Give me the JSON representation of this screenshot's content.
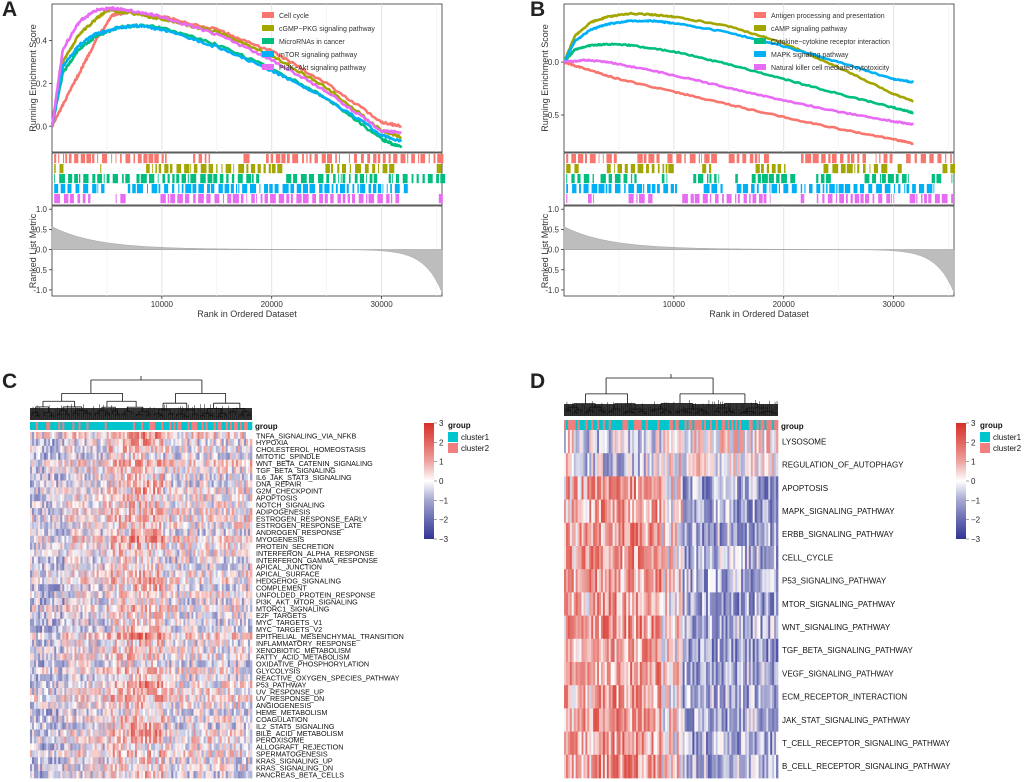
{
  "panel_labels": {
    "a": "A",
    "b": "B",
    "c": "C",
    "d": "D"
  },
  "chart_data": [
    {
      "type": "line",
      "panel": "A",
      "title": "",
      "ylabel_top": "Running Enrichment Score",
      "ylabel_bottom": "Ranked List Metric",
      "xlabel": "Rank in Ordered Dataset",
      "x_ticks": [
        "10000",
        "20000",
        "30000"
      ],
      "x_tick_values": [
        10000,
        20000,
        30000
      ],
      "xlim": [
        0,
        35500
      ],
      "y_ticks_top": [
        "0.0",
        "0.2",
        "0.4"
      ],
      "y_tick_values_top": [
        0.0,
        0.2,
        0.4
      ],
      "ylim_top": [
        -0.12,
        0.57
      ],
      "y_ticks_bottom": [
        "1.0",
        "0.5",
        "0.0",
        "-0.5",
        "-1.0"
      ],
      "y_tick_values_bottom": [
        1.0,
        0.5,
        0.0,
        -0.5,
        -1.0
      ],
      "ylim_bottom": [
        -1.15,
        1.08
      ],
      "series": [
        {
          "name": "Cell cycle",
          "color": "#F8766D",
          "x": [
            0,
            1500,
            3000,
            4200,
            5500,
            7000,
            10000,
            15000,
            20000,
            25000,
            30000,
            31800
          ],
          "y": [
            0.0,
            0.15,
            0.3,
            0.42,
            0.52,
            0.53,
            0.51,
            0.45,
            0.35,
            0.2,
            0.02,
            0.0
          ]
        },
        {
          "name": "cGMP−PKG signaling pathway",
          "color": "#A3A500",
          "x": [
            0,
            1000,
            2500,
            4000,
            5000,
            7000,
            10000,
            15000,
            20000,
            25000,
            30000,
            31800
          ],
          "y": [
            0.0,
            0.3,
            0.43,
            0.5,
            0.54,
            0.53,
            0.5,
            0.44,
            0.33,
            0.18,
            -0.02,
            -0.05
          ]
        },
        {
          "name": "MicroRNAs in cancer",
          "color": "#00BF7D",
          "x": [
            0,
            1000,
            2500,
            4000,
            6000,
            8000,
            10000,
            15000,
            20000,
            25000,
            30000,
            31800
          ],
          "y": [
            0.0,
            0.25,
            0.36,
            0.42,
            0.46,
            0.47,
            0.46,
            0.38,
            0.27,
            0.13,
            -0.06,
            -0.1
          ]
        },
        {
          "name": "mTOR signaling pathway",
          "color": "#00B0F6",
          "x": [
            0,
            1000,
            2500,
            4000,
            6000,
            8000,
            10000,
            15000,
            20000,
            25000,
            30000,
            31800
          ],
          "y": [
            0.0,
            0.28,
            0.38,
            0.43,
            0.46,
            0.47,
            0.45,
            0.37,
            0.26,
            0.13,
            -0.04,
            -0.07
          ]
        },
        {
          "name": "PI3K−Akt signaling pathway",
          "color": "#E76BF3",
          "x": [
            0,
            1000,
            2500,
            4000,
            5500,
            7000,
            10000,
            15000,
            20000,
            25000,
            30000,
            31800
          ],
          "y": [
            0.0,
            0.36,
            0.49,
            0.54,
            0.55,
            0.54,
            0.51,
            0.43,
            0.31,
            0.16,
            -0.02,
            -0.03
          ]
        }
      ],
      "legend_position": "top-right"
    },
    {
      "type": "line",
      "panel": "B",
      "title": "",
      "ylabel_top": "Running Enrichment Score",
      "ylabel_bottom": "Ranked List Metric",
      "xlabel": "Rank in Ordered Dataset",
      "x_ticks": [
        "10000",
        "20000",
        "30000"
      ],
      "x_tick_values": [
        10000,
        20000,
        30000
      ],
      "xlim": [
        0,
        35500
      ],
      "y_ticks_top": [
        "0.0",
        "-0.5"
      ],
      "y_tick_values_top": [
        0.0,
        -0.5
      ],
      "ylim_top": [
        -0.85,
        0.55
      ],
      "y_ticks_bottom": [
        "1.0",
        "0.5",
        "0.0",
        "-0.5",
        "-1.0"
      ],
      "y_tick_values_bottom": [
        1.0,
        0.5,
        0.0,
        -0.5,
        -1.0
      ],
      "ylim_bottom": [
        -1.15,
        1.08
      ],
      "series": [
        {
          "name": "Antigen processing and presentation",
          "color": "#F8766D",
          "x": [
            0,
            1500,
            5000,
            10000,
            15000,
            20000,
            25000,
            30000,
            31800
          ],
          "y": [
            0.0,
            -0.05,
            -0.16,
            -0.28,
            -0.4,
            -0.52,
            -0.63,
            -0.73,
            -0.77
          ]
        },
        {
          "name": "cAMP signaling pathway",
          "color": "#A3A500",
          "x": [
            0,
            1000,
            2500,
            4000,
            6000,
            8000,
            10000,
            15000,
            20000,
            25000,
            30000,
            31800
          ],
          "y": [
            0.0,
            0.25,
            0.38,
            0.43,
            0.46,
            0.45,
            0.43,
            0.34,
            0.18,
            -0.05,
            -0.3,
            -0.37
          ]
        },
        {
          "name": "Cytokine−cytokine receptor interaction",
          "color": "#00BF7D",
          "x": [
            0,
            1000,
            2500,
            4000,
            6000,
            10000,
            15000,
            20000,
            25000,
            30000,
            31800
          ],
          "y": [
            0.0,
            0.12,
            0.16,
            0.17,
            0.16,
            0.1,
            -0.02,
            -0.16,
            -0.3,
            -0.43,
            -0.48
          ]
        },
        {
          "name": "MAPK signaling pathway",
          "color": "#00B0F6",
          "x": [
            0,
            1000,
            2500,
            4000,
            6000,
            8000,
            10000,
            15000,
            20000,
            25000,
            30000,
            31800
          ],
          "y": [
            0.0,
            0.2,
            0.31,
            0.36,
            0.39,
            0.39,
            0.37,
            0.28,
            0.15,
            0.0,
            -0.16,
            -0.19
          ]
        },
        {
          "name": "Natural killer cell mediated cytotoxicity",
          "color": "#E76BF3",
          "x": [
            0,
            2000,
            4000,
            8000,
            12000,
            16000,
            20000,
            25000,
            30000,
            31800
          ],
          "y": [
            0.0,
            0.02,
            0.0,
            -0.08,
            -0.17,
            -0.27,
            -0.36,
            -0.47,
            -0.56,
            -0.59
          ]
        }
      ],
      "legend_position": "top-right"
    },
    {
      "type": "heatmap",
      "panel": "C",
      "legend_title": "group",
      "groups": [
        {
          "name": "cluster1",
          "color": "#00C5CD"
        },
        {
          "name": "cluster2",
          "color": "#F08080"
        }
      ],
      "group_bar_label": "group",
      "colorbar_ticks": [
        "3",
        "2",
        "1",
        "0",
        "−1",
        "−2",
        "−3"
      ],
      "colorbar_values": [
        3,
        2,
        1,
        0,
        -1,
        -2,
        -3
      ],
      "rows": [
        "TNFA_SIGNALING_VIA_NFKB",
        "HYPOXIA",
        "CHOLESTEROL_HOMEOSTASIS",
        "MITOTIC_SPINDLE",
        "WNT_BETA_CATENIN_SIGNALING",
        "TGF_BETA_SIGNALING",
        "IL6_JAK_STAT3_SIGNALING",
        "DNA_REPAIR",
        "G2M_CHECKPOINT",
        "APOPTOSIS",
        "NOTCH_SIGNALING",
        "ADIPOGENESIS",
        "ESTROGEN_RESPONSE_EARLY",
        "ESTROGEN_RESPONSE_LATE",
        "ANDROGEN_RESPONSE",
        "MYOGENESIS",
        "PROTEIN_SECRETION",
        "INTERFERON_ALPHA_RESPONSE",
        "INTERFERON_GAMMA_RESPONSE",
        "APICAL_JUNCTION",
        "APICAL_SURFACE",
        "HEDGEHOG_SIGNALING",
        "COMPLEMENT",
        "UNFOLDED_PROTEIN_RESPONSE",
        "PI3K_AKT_MTOR_SIGNALING",
        "MTORC1_SIGNALING",
        "E2F_TARGETS",
        "MYC_TARGETS_V1",
        "MYC_TARGETS_V2",
        "EPITHELIAL_MESENCHYMAL_TRANSITION",
        "INFLAMMATORY_RESPONSE",
        "XENOBIOTIC_METABOLISM",
        "FATTY_ACID_METABOLISM",
        "OXIDATIVE_PHOSPHORYLATION",
        "GLYCOLYSIS",
        "REACTIVE_OXYGEN_SPECIES_PATHWAY",
        "P53_PATHWAY",
        "UV_RESPONSE_UP",
        "UV_RESPONSE_DN",
        "ANGIOGENESIS",
        "HEME_METABOLISM",
        "COAGULATION",
        "IL2_STAT5_SIGNALING",
        "BILE_ACID_METABOLISM",
        "PEROXISOME",
        "ALLOGRAFT_REJECTION",
        "SPERMATOGENESIS",
        "KRAS_SIGNALING_UP",
        "KRAS_SIGNALING_DN",
        "PANCREAS_BETA_CELLS"
      ]
    },
    {
      "type": "heatmap",
      "panel": "D",
      "legend_title": "group",
      "groups": [
        {
          "name": "cluster1",
          "color": "#00C5CD"
        },
        {
          "name": "cluster2",
          "color": "#F08080"
        }
      ],
      "group_bar_label": "group",
      "colorbar_ticks": [
        "3",
        "2",
        "1",
        "0",
        "−1",
        "−2",
        "−3"
      ],
      "colorbar_values": [
        3,
        2,
        1,
        0,
        -1,
        -2,
        -3
      ],
      "rows": [
        "LYSOSOME",
        "REGULATION_OF_AUTOPHAGY",
        "APOPTOSIS",
        "MAPK_SIGNALING_PATHWAY",
        "ERBB_SIGNALING_PATHWAY",
        "CELL_CYCLE",
        "P53_SIGNALING_PATHWAY",
        "MTOR_SIGNALING_PATHWAY",
        "WNT_SIGNALING_PATHWAY",
        "TGF_BETA_SIGNALING_PATHWAY",
        "VEGF_SIGNALING_PATHWAY",
        "ECM_RECEPTOR_INTERACTION",
        "JAK_STAT_SIGNALING_PATHWAY",
        "T_CELL_RECEPTOR_SIGNALING_PATHWAY",
        "B_CELL_RECEPTOR_SIGNALING_PATHWAY"
      ]
    }
  ]
}
